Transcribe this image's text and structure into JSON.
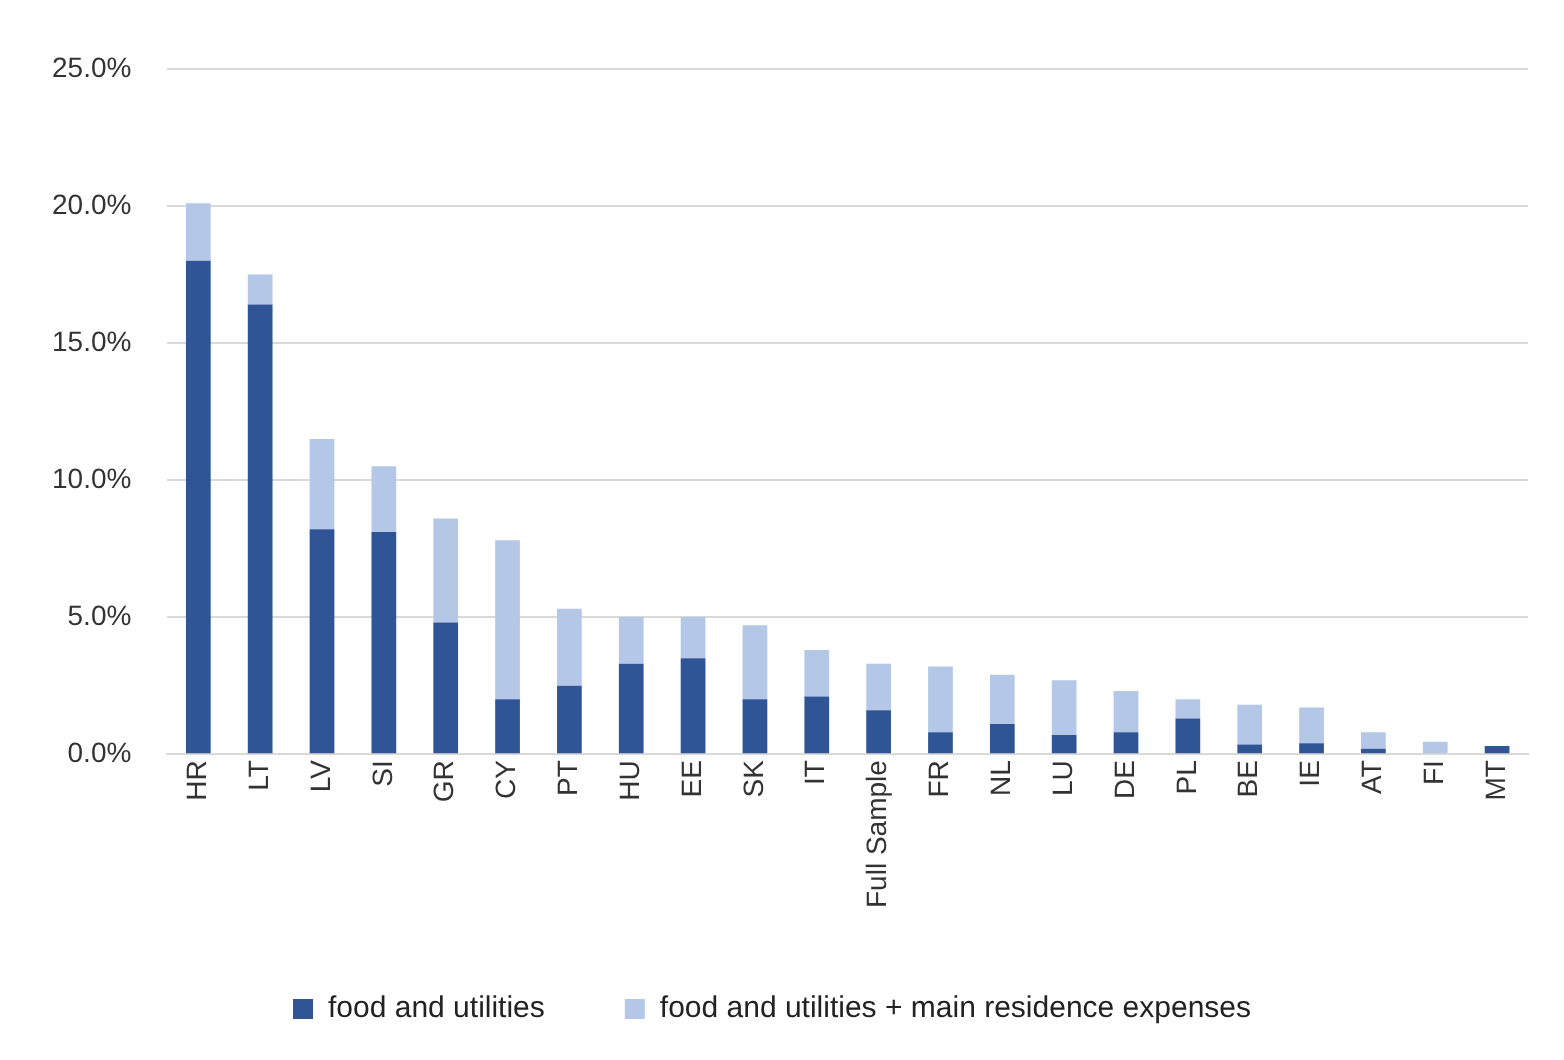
{
  "chart_data": {
    "type": "bar",
    "stacked": true,
    "categories": [
      "HR",
      "LT",
      "LV",
      "SI",
      "GR",
      "CY",
      "PT",
      "HU",
      "EE",
      "SK",
      "IT",
      "Full Sample",
      "FR",
      "NL",
      "LU",
      "DE",
      "PL",
      "BE",
      "IE",
      "AT",
      "FI",
      "MT"
    ],
    "series": [
      {
        "name": "food and utilities",
        "color": "#2f5597",
        "values": [
          18.0,
          16.4,
          8.2,
          8.1,
          4.8,
          2.0,
          2.5,
          3.3,
          3.5,
          2.0,
          2.1,
          1.6,
          0.8,
          1.1,
          0.7,
          0.8,
          1.3,
          0.35,
          0.4,
          0.2,
          0,
          0.3
        ]
      },
      {
        "name": "food and utilities + main residence expenses",
        "color": "#b4c7e7",
        "values": [
          2.1,
          1.1,
          3.3,
          2.4,
          3.8,
          5.8,
          2.8,
          1.7,
          1.5,
          2.7,
          1.7,
          1.7,
          2.4,
          1.8,
          2.0,
          1.5,
          0.7,
          1.45,
          1.3,
          0.6,
          0.45,
          0
        ]
      }
    ],
    "ylim": [
      0,
      25
    ],
    "yticks": [
      {
        "value": 0,
        "label": "0.0%"
      },
      {
        "value": 5,
        "label": "5.0%"
      },
      {
        "value": 10,
        "label": "10.0%"
      },
      {
        "value": 15,
        "label": "15.0%"
      },
      {
        "value": 20,
        "label": "20.0%"
      },
      {
        "value": 25,
        "label": "25.0%"
      }
    ],
    "grid": "y",
    "legend": "bottom"
  }
}
